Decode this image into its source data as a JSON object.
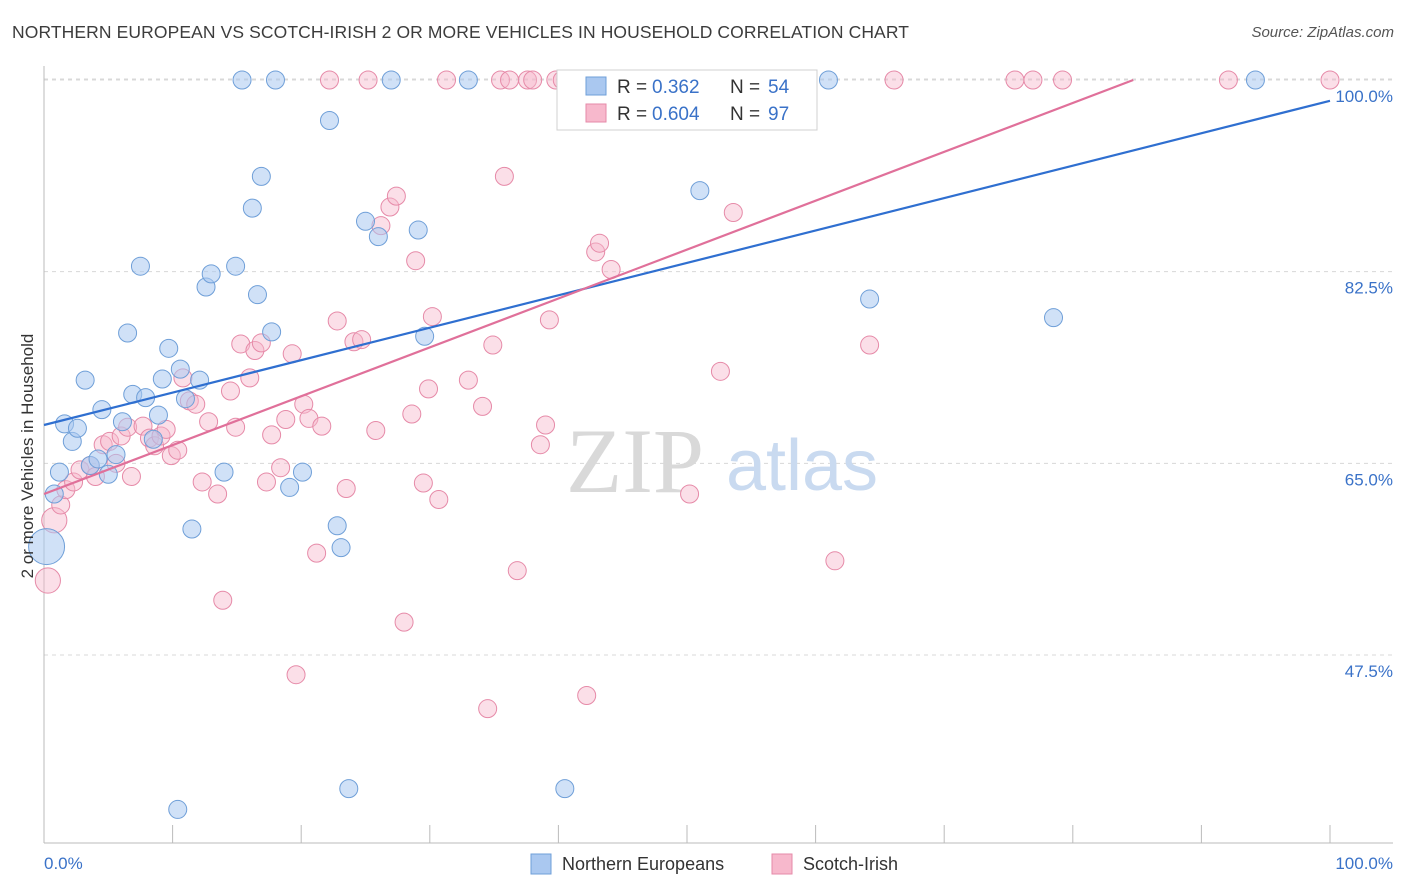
{
  "header": {
    "title": "NORTHERN EUROPEAN VS SCOTCH-IRISH 2 OR MORE VEHICLES IN HOUSEHOLD CORRELATION CHART",
    "source": "Source: ZipAtlas.com"
  },
  "watermark": {
    "zip": "ZIP",
    "atlas": "atlas"
  },
  "legend": {
    "r_label": "R =",
    "n_label": "N =",
    "rows": [
      {
        "r": "0.362",
        "n": "54"
      },
      {
        "r": "0.604",
        "n": "97"
      }
    ]
  },
  "colors": {
    "blue_fill": "#aac8f0",
    "blue_stroke": "#6f9fd8",
    "blue_line": "#2f6fd0",
    "pink_fill": "#f7b8cc",
    "pink_stroke": "#e68aa8",
    "pink_line": "#e0709a",
    "tick_text": "#3a72c8",
    "grid": "#d8d8d8"
  },
  "chart_data": {
    "type": "scatter",
    "xlabel": "",
    "ylabel": "2 or more Vehicles in Household",
    "xlim": [
      0,
      100
    ],
    "ylim": [
      31.5,
      102
    ],
    "x_tick_labels": [
      "0.0%",
      "100.0%"
    ],
    "y_ticks": [
      47.5,
      65.0,
      82.5,
      100.0
    ],
    "y_tick_labels": [
      "47.5%",
      "65.0%",
      "82.5%",
      "100.0%"
    ],
    "grid": true,
    "legend_position": "top-center",
    "series": [
      {
        "name": "Northern Europeans",
        "color": "#aac8f0",
        "trend": {
          "x": [
            0,
            100
          ],
          "y": [
            68.5,
            98.1
          ]
        },
        "points": [
          [
            0.2,
            57.4,
            2.0
          ],
          [
            0.8,
            62.2,
            1
          ],
          [
            1.2,
            64.2,
            1
          ],
          [
            1.6,
            68.6,
            1
          ],
          [
            2.2,
            67.0,
            1
          ],
          [
            2.6,
            68.2,
            1
          ],
          [
            3.2,
            72.6,
            1
          ],
          [
            3.6,
            64.8,
            1
          ],
          [
            4.2,
            65.4,
            1
          ],
          [
            4.5,
            69.9,
            1
          ],
          [
            5.0,
            64.0,
            1
          ],
          [
            5.6,
            65.8,
            1
          ],
          [
            6.1,
            68.8,
            1
          ],
          [
            6.5,
            76.9,
            1
          ],
          [
            6.9,
            71.3,
            1
          ],
          [
            7.5,
            83.0,
            1
          ],
          [
            7.9,
            71.0,
            1
          ],
          [
            8.5,
            67.2,
            1
          ],
          [
            8.9,
            69.4,
            1
          ],
          [
            9.2,
            72.7,
            1
          ],
          [
            9.7,
            75.5,
            1
          ],
          [
            10.4,
            33.4,
            1
          ],
          [
            10.6,
            73.6,
            1
          ],
          [
            11.0,
            70.9,
            1
          ],
          [
            11.5,
            59.0,
            1
          ],
          [
            12.1,
            72.6,
            1
          ],
          [
            12.6,
            81.1,
            1
          ],
          [
            13.0,
            82.3,
            1
          ],
          [
            14.0,
            64.2,
            1
          ],
          [
            14.9,
            83.0,
            1
          ],
          [
            15.4,
            100.0,
            1
          ],
          [
            16.2,
            88.3,
            1
          ],
          [
            16.6,
            80.4,
            1
          ],
          [
            16.9,
            91.2,
            1
          ],
          [
            17.7,
            77.0,
            1
          ],
          [
            18.0,
            100.0,
            1
          ],
          [
            19.1,
            62.8,
            1
          ],
          [
            20.1,
            64.2,
            1
          ],
          [
            22.2,
            96.3,
            1
          ],
          [
            22.8,
            59.3,
            1
          ],
          [
            23.1,
            57.3,
            1
          ],
          [
            23.7,
            35.3,
            1
          ],
          [
            25.0,
            87.1,
            1
          ],
          [
            26.0,
            85.7,
            1
          ],
          [
            27.0,
            100.0,
            1
          ],
          [
            29.1,
            86.3,
            1
          ],
          [
            29.6,
            76.6,
            1
          ],
          [
            33.0,
            100.0,
            1
          ],
          [
            40.5,
            35.3,
            1
          ],
          [
            51.0,
            89.9,
            1
          ],
          [
            61.0,
            100.0,
            1
          ],
          [
            64.2,
            80.0,
            1
          ],
          [
            78.5,
            78.3,
            1
          ],
          [
            94.2,
            100.0,
            1
          ]
        ]
      },
      {
        "name": "Scotch-Irish",
        "color": "#f7b8cc",
        "trend": {
          "x": [
            0,
            84.7
          ],
          "y": [
            62.2,
            100.0
          ]
        },
        "points": [
          [
            0.3,
            54.3,
            1.4
          ],
          [
            0.8,
            59.8,
            1.4
          ],
          [
            1.3,
            61.2,
            1
          ],
          [
            1.7,
            62.6,
            1
          ],
          [
            2.3,
            63.3,
            1
          ],
          [
            2.8,
            64.4,
            1
          ],
          [
            3.6,
            64.8,
            1
          ],
          [
            4.0,
            63.8,
            1
          ],
          [
            4.6,
            66.7,
            1
          ],
          [
            5.1,
            67.0,
            1
          ],
          [
            5.6,
            65.0,
            1
          ],
          [
            6.0,
            67.5,
            1
          ],
          [
            6.5,
            68.3,
            1
          ],
          [
            6.8,
            63.8,
            1
          ],
          [
            7.7,
            68.4,
            1
          ],
          [
            8.2,
            67.3,
            1
          ],
          [
            8.6,
            66.6,
            1
          ],
          [
            9.1,
            67.5,
            1
          ],
          [
            9.5,
            68.1,
            1
          ],
          [
            9.9,
            65.7,
            1
          ],
          [
            10.4,
            66.2,
            1
          ],
          [
            10.8,
            72.8,
            1
          ],
          [
            11.3,
            70.7,
            1
          ],
          [
            11.8,
            70.4,
            1
          ],
          [
            12.3,
            63.3,
            1
          ],
          [
            12.8,
            68.8,
            1
          ],
          [
            13.5,
            62.2,
            1
          ],
          [
            13.9,
            52.5,
            1
          ],
          [
            14.5,
            71.6,
            1
          ],
          [
            14.9,
            68.3,
            1
          ],
          [
            15.3,
            75.9,
            1
          ],
          [
            16.0,
            72.8,
            1
          ],
          [
            16.4,
            75.3,
            1
          ],
          [
            16.9,
            76.0,
            1
          ],
          [
            17.3,
            63.3,
            1
          ],
          [
            17.7,
            67.6,
            1
          ],
          [
            18.4,
            64.6,
            1
          ],
          [
            18.8,
            69.0,
            1
          ],
          [
            19.3,
            75.0,
            1
          ],
          [
            19.6,
            45.7,
            1
          ],
          [
            20.2,
            70.4,
            1
          ],
          [
            20.6,
            69.1,
            1
          ],
          [
            21.2,
            56.8,
            1
          ],
          [
            21.6,
            68.4,
            1
          ],
          [
            22.2,
            100.0,
            1
          ],
          [
            22.8,
            78.0,
            1
          ],
          [
            23.5,
            62.7,
            1
          ],
          [
            24.1,
            76.1,
            1
          ],
          [
            24.7,
            76.3,
            1
          ],
          [
            25.2,
            100.0,
            1
          ],
          [
            25.8,
            68.0,
            1
          ],
          [
            26.2,
            86.7,
            1
          ],
          [
            26.9,
            88.4,
            1
          ],
          [
            27.4,
            89.4,
            1
          ],
          [
            28.0,
            50.5,
            1
          ],
          [
            28.6,
            69.5,
            1
          ],
          [
            28.9,
            83.5,
            1
          ],
          [
            29.5,
            63.2,
            1
          ],
          [
            29.9,
            71.8,
            1
          ],
          [
            30.2,
            78.4,
            1
          ],
          [
            30.7,
            61.7,
            1
          ],
          [
            31.3,
            100.0,
            1
          ],
          [
            33.0,
            72.6,
            1
          ],
          [
            34.1,
            70.2,
            1
          ],
          [
            34.5,
            42.6,
            1
          ],
          [
            34.9,
            75.8,
            1
          ],
          [
            35.5,
            100.0,
            1
          ],
          [
            35.8,
            91.2,
            1
          ],
          [
            36.2,
            100.0,
            1
          ],
          [
            36.8,
            55.2,
            1
          ],
          [
            37.6,
            100.0,
            1
          ],
          [
            38.0,
            100.0,
            1
          ],
          [
            38.6,
            66.7,
            1
          ],
          [
            39.0,
            68.5,
            1
          ],
          [
            39.3,
            78.1,
            1
          ],
          [
            39.8,
            100.0,
            1
          ],
          [
            40.3,
            100.0,
            1
          ],
          [
            40.9,
            100.0,
            1
          ],
          [
            41.4,
            100.0,
            1
          ],
          [
            42.0,
            100.0,
            1
          ],
          [
            42.2,
            43.8,
            1
          ],
          [
            42.9,
            84.3,
            1
          ],
          [
            43.2,
            85.1,
            1
          ],
          [
            44.1,
            82.7,
            1
          ],
          [
            46.4,
            100.0,
            1
          ],
          [
            50.2,
            62.2,
            1
          ],
          [
            52.6,
            73.4,
            1
          ],
          [
            53.6,
            87.9,
            1
          ],
          [
            56.5,
            100.0,
            1
          ],
          [
            61.5,
            56.1,
            1
          ],
          [
            64.2,
            75.8,
            1
          ],
          [
            66.1,
            100.0,
            1
          ],
          [
            75.5,
            100.0,
            1
          ],
          [
            76.9,
            100.0,
            1
          ],
          [
            79.2,
            100.0,
            1
          ],
          [
            92.1,
            100.0,
            1
          ],
          [
            100.0,
            100.0,
            1
          ]
        ]
      }
    ]
  }
}
